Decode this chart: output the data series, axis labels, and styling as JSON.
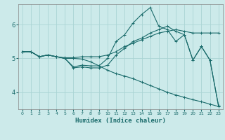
{
  "xlabel": "Humidex (Indice chaleur)",
  "bg_color": "#cceaea",
  "grid_color": "#aad4d4",
  "line_color": "#1a6b6b",
  "xlim": [
    -0.5,
    23.5
  ],
  "ylim": [
    3.5,
    6.6
  ],
  "yticks": [
    4,
    5,
    6
  ],
  "xticks": [
    0,
    1,
    2,
    3,
    4,
    5,
    6,
    7,
    8,
    9,
    10,
    11,
    12,
    13,
    14,
    15,
    16,
    17,
    18,
    19,
    20,
    21,
    22,
    23
  ],
  "lines": [
    [
      5.2,
      5.2,
      5.05,
      5.1,
      5.05,
      5.0,
      4.75,
      4.8,
      4.78,
      4.78,
      5.0,
      5.5,
      5.7,
      6.05,
      6.3,
      6.5,
      5.95,
      5.85,
      5.5,
      5.7,
      4.95,
      5.35,
      4.95,
      3.6
    ],
    [
      5.2,
      5.2,
      5.05,
      5.1,
      5.05,
      5.0,
      4.72,
      4.75,
      4.72,
      4.72,
      4.8,
      5.1,
      5.3,
      5.5,
      5.6,
      5.75,
      5.85,
      5.95,
      5.8,
      5.7,
      4.95,
      5.35,
      4.95,
      3.6
    ],
    [
      5.2,
      5.2,
      5.05,
      5.1,
      5.05,
      5.02,
      5.02,
      5.05,
      5.05,
      5.05,
      5.1,
      5.2,
      5.35,
      5.45,
      5.55,
      5.65,
      5.75,
      5.8,
      5.85,
      5.8,
      5.75,
      5.75,
      5.75,
      5.75
    ],
    [
      5.2,
      5.2,
      5.05,
      5.1,
      5.05,
      5.0,
      5.0,
      4.98,
      4.9,
      4.78,
      4.65,
      4.55,
      4.48,
      4.4,
      4.3,
      4.2,
      4.1,
      4.0,
      3.92,
      3.85,
      3.78,
      3.72,
      3.65,
      3.58
    ]
  ]
}
